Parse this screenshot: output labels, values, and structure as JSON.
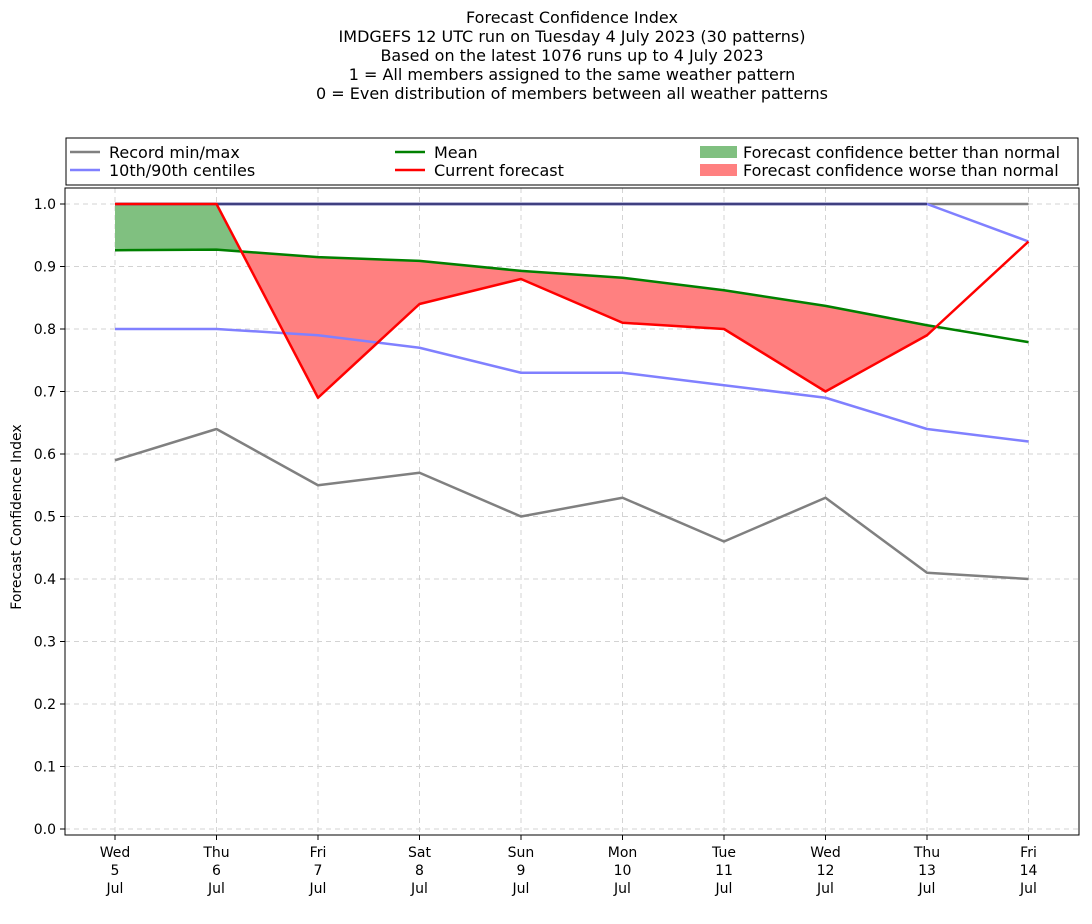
{
  "chart_data": {
    "type": "line",
    "title": [
      "Forecast Confidence Index",
      "IMDGEFS 12 UTC run on Tuesday 4 July 2023 (30 patterns)",
      "Based on the latest 1076 runs up to 4 July 2023",
      "1 = All members assigned to the same weather pattern",
      "0 = Even distribution of members between all weather patterns"
    ],
    "ylabel": "Forecast Confidence Index",
    "xlabel": "",
    "ylim": [
      0,
      1.0
    ],
    "yticks": [
      "0.0",
      "0.1",
      "0.2",
      "0.3",
      "0.4",
      "0.5",
      "0.6",
      "0.7",
      "0.8",
      "0.9",
      "1.0"
    ],
    "categories": [
      [
        "Wed",
        "5",
        "Jul"
      ],
      [
        "Thu",
        "6",
        "Jul"
      ],
      [
        "Fri",
        "7",
        "Jul"
      ],
      [
        "Sat",
        "8",
        "Jul"
      ],
      [
        "Sun",
        "9",
        "Jul"
      ],
      [
        "Mon",
        "10",
        "Jul"
      ],
      [
        "Tue",
        "11",
        "Jul"
      ],
      [
        "Wed",
        "12",
        "Jul"
      ],
      [
        "Thu",
        "13",
        "Jul"
      ],
      [
        "Fri",
        "14",
        "Jul"
      ]
    ],
    "grid": true,
    "legend_position": "top",
    "series": {
      "record_min": [
        0.59,
        0.64,
        0.55,
        0.57,
        0.5,
        0.53,
        0.46,
        0.53,
        0.41,
        0.4
      ],
      "record_max": [
        1.0,
        1.0,
        1.0,
        1.0,
        1.0,
        1.0,
        1.0,
        1.0,
        1.0,
        1.0
      ],
      "p10": [
        0.8,
        0.8,
        0.79,
        0.77,
        0.73,
        0.73,
        0.71,
        0.69,
        0.64,
        0.62
      ],
      "p90": [
        1.0,
        1.0,
        1.0,
        1.0,
        1.0,
        1.0,
        1.0,
        1.0,
        1.0,
        0.94
      ],
      "mean": [
        0.926,
        0.927,
        0.915,
        0.909,
        0.893,
        0.882,
        0.862,
        0.837,
        0.806,
        0.779
      ],
      "current": [
        1.0,
        1.0,
        0.69,
        0.84,
        0.88,
        0.81,
        0.8,
        0.7,
        0.79,
        0.94
      ]
    },
    "legend": [
      {
        "label": "Record min/max",
        "kind": "line",
        "color": "#808080"
      },
      {
        "label": "10th/90th centiles",
        "kind": "line",
        "color": "#8080ff"
      },
      {
        "label": "Mean",
        "kind": "line",
        "color": "#008000"
      },
      {
        "label": "Current forecast",
        "kind": "line",
        "color": "#ff0000"
      },
      {
        "label": "Forecast confidence better than normal",
        "kind": "patch",
        "color": "#80c080"
      },
      {
        "label": "Forecast confidence worse than normal",
        "kind": "patch",
        "color": "#ff8080"
      }
    ],
    "colors": {
      "record": "#808080",
      "centile": "#8080ff",
      "mean": "#008000",
      "current": "#ff0000",
      "better_fill": "#80c080",
      "worse_fill": "#ff8080",
      "grid": "#d3d3d3",
      "overlap": "#404080"
    }
  }
}
